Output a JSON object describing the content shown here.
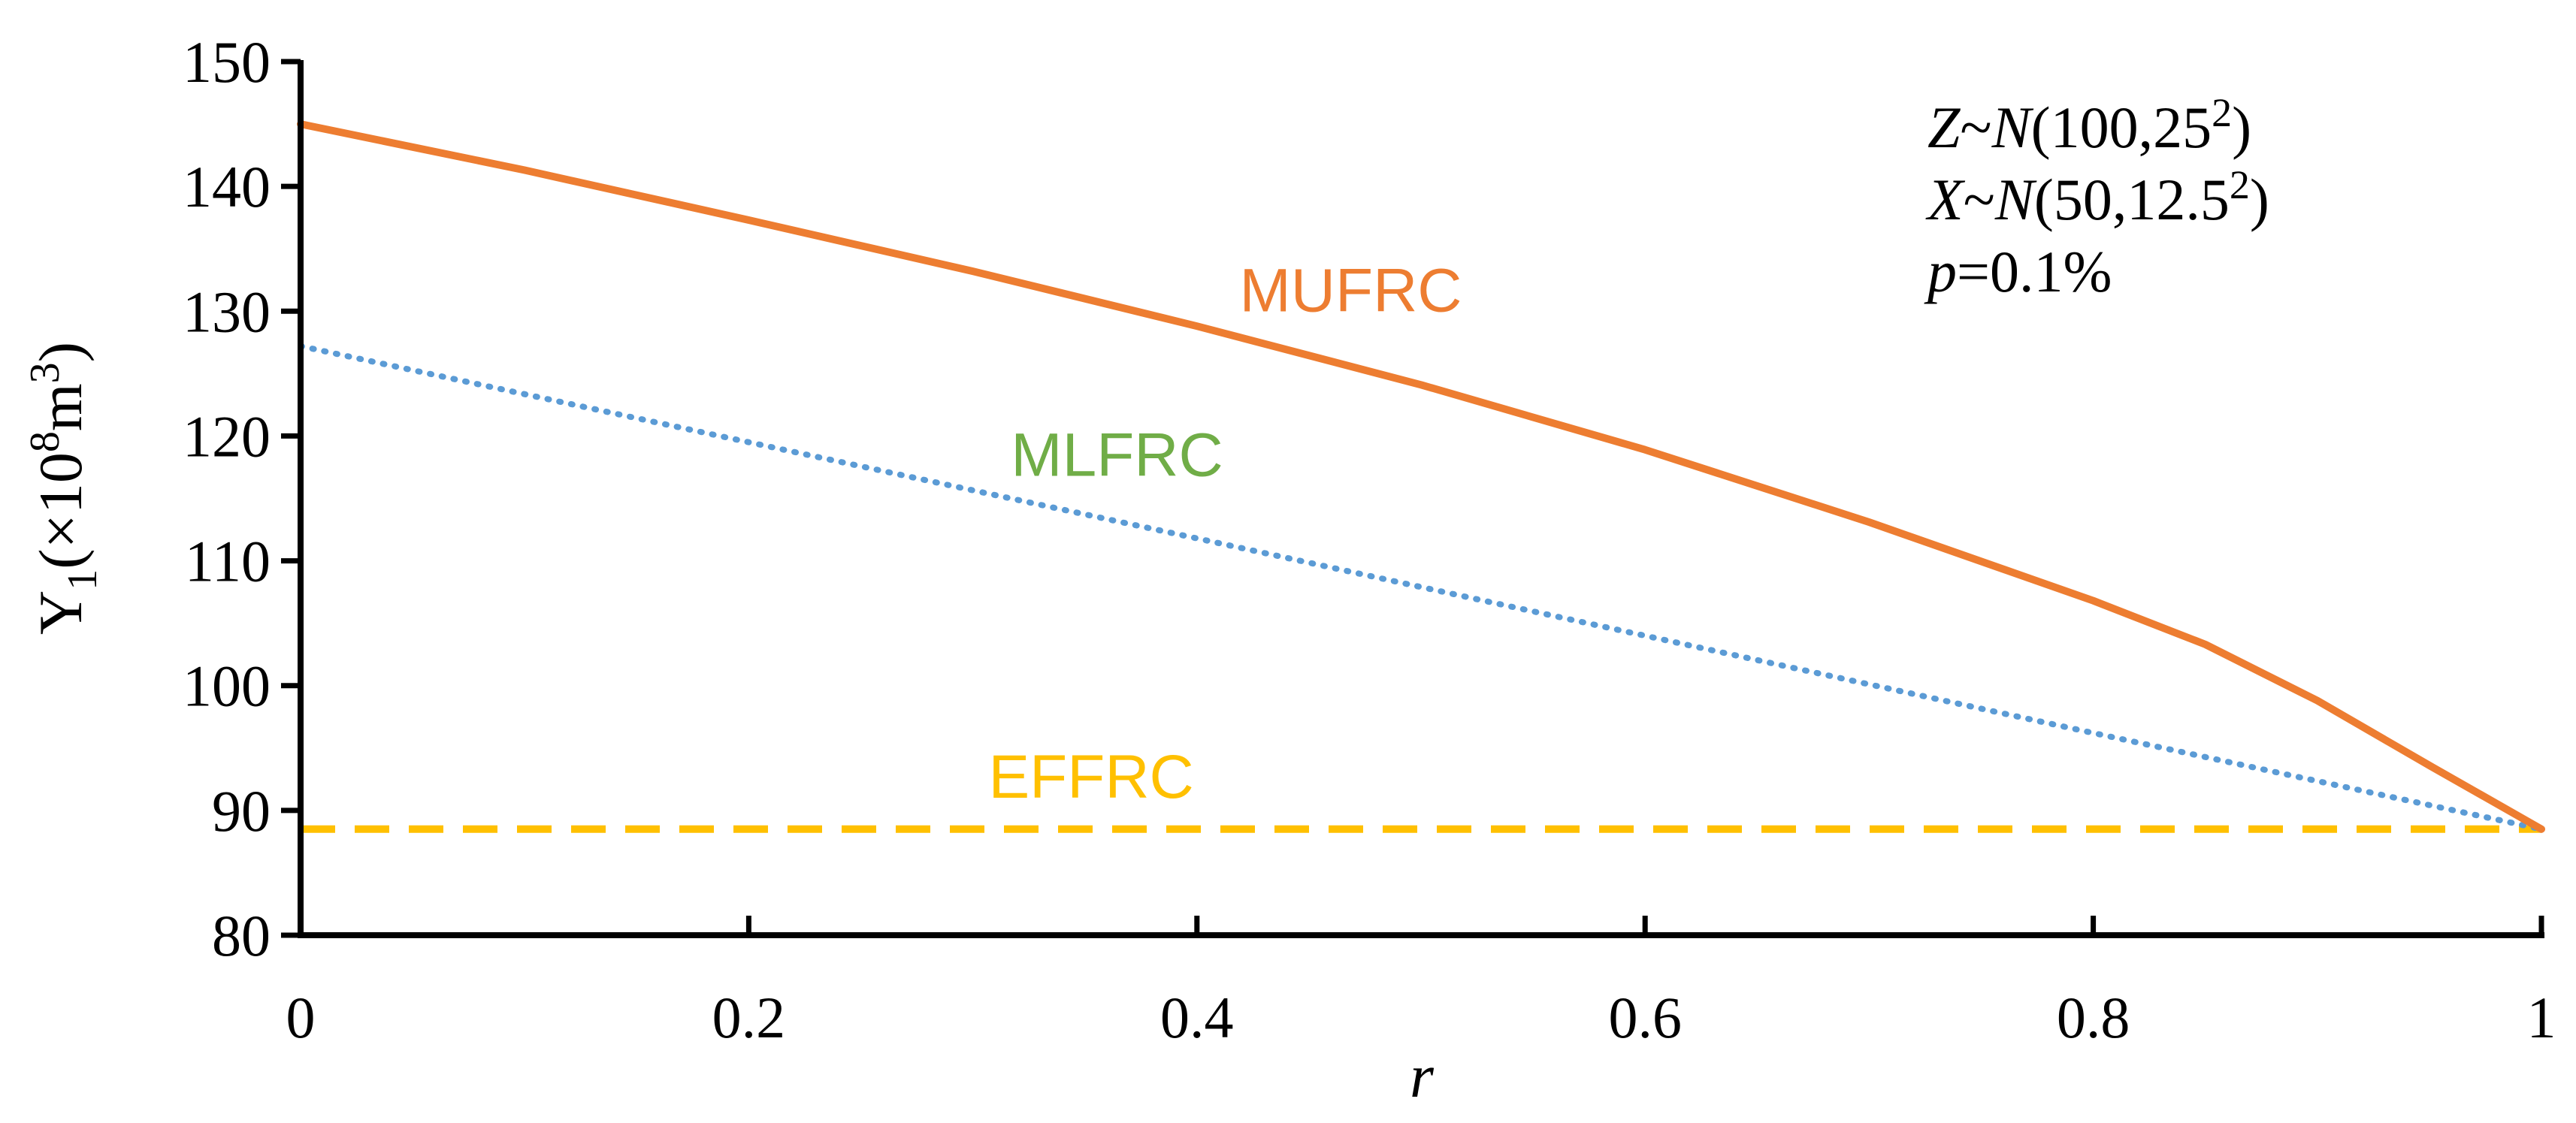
{
  "chart_data": {
    "type": "line",
    "xlabel": "r",
    "ylabel": {
      "prefix": "Y",
      "sub": "1",
      "unit_open": "(×10",
      "unit_exp": "8",
      "unit_mid": "m",
      "unit_exp2": "3",
      "unit_close": ")"
    },
    "xlim": [
      0,
      1
    ],
    "ylim": [
      80,
      150
    ],
    "x_ticks": [
      0,
      0.2,
      0.4,
      0.6,
      0.8,
      1
    ],
    "x_tick_labels": [
      "0",
      "0.2",
      "0.4",
      "0.6",
      "0.8",
      "1"
    ],
    "y_ticks": [
      80,
      90,
      100,
      110,
      120,
      130,
      140,
      150
    ],
    "y_tick_labels": [
      "80",
      "90",
      "100",
      "110",
      "120",
      "130",
      "140",
      "150"
    ],
    "grid": false,
    "legend": "none",
    "series": [
      {
        "name": "MUFRC",
        "color": "#ED7D31",
        "style": "solid",
        "x": [
          0,
          0.1,
          0.2,
          0.3,
          0.4,
          0.5,
          0.6,
          0.7,
          0.8,
          0.85,
          0.9,
          0.95,
          1.0
        ],
        "y": [
          145.0,
          141.3,
          137.3,
          133.2,
          128.8,
          124.1,
          118.9,
          113.1,
          106.8,
          103.3,
          98.8,
          93.6,
          88.5
        ]
      },
      {
        "name": "MLFRC",
        "color": "#5B9BD5",
        "style": "dotted",
        "x": [
          0,
          0.2,
          0.4,
          0.6,
          0.8,
          1.0
        ],
        "y": [
          127.2,
          119.5,
          111.8,
          104.0,
          96.2,
          88.5
        ]
      },
      {
        "name": "EFFRC",
        "color": "#FFC000",
        "style": "dashed",
        "x": [
          0,
          1.0
        ],
        "y": [
          88.5,
          88.5
        ]
      }
    ],
    "series_labels": [
      {
        "text": "MUFRC",
        "color": "#ED7D31"
      },
      {
        "text": "MLFRC",
        "color": "#70AD47"
      },
      {
        "text": "EFFRC",
        "color": "#FFC000"
      }
    ],
    "annotations": {
      "line1": {
        "var": "Z",
        "tilde": "~",
        "dist": "N",
        "params": "(100,25",
        "sup": "2",
        "close": ")"
      },
      "line2": {
        "var": "X",
        "tilde": "~",
        "dist": "N",
        "params": "(50,12.5",
        "sup": "2",
        "close": ")"
      },
      "line3": {
        "var": "p",
        "rest": "=0.1%"
      }
    }
  }
}
